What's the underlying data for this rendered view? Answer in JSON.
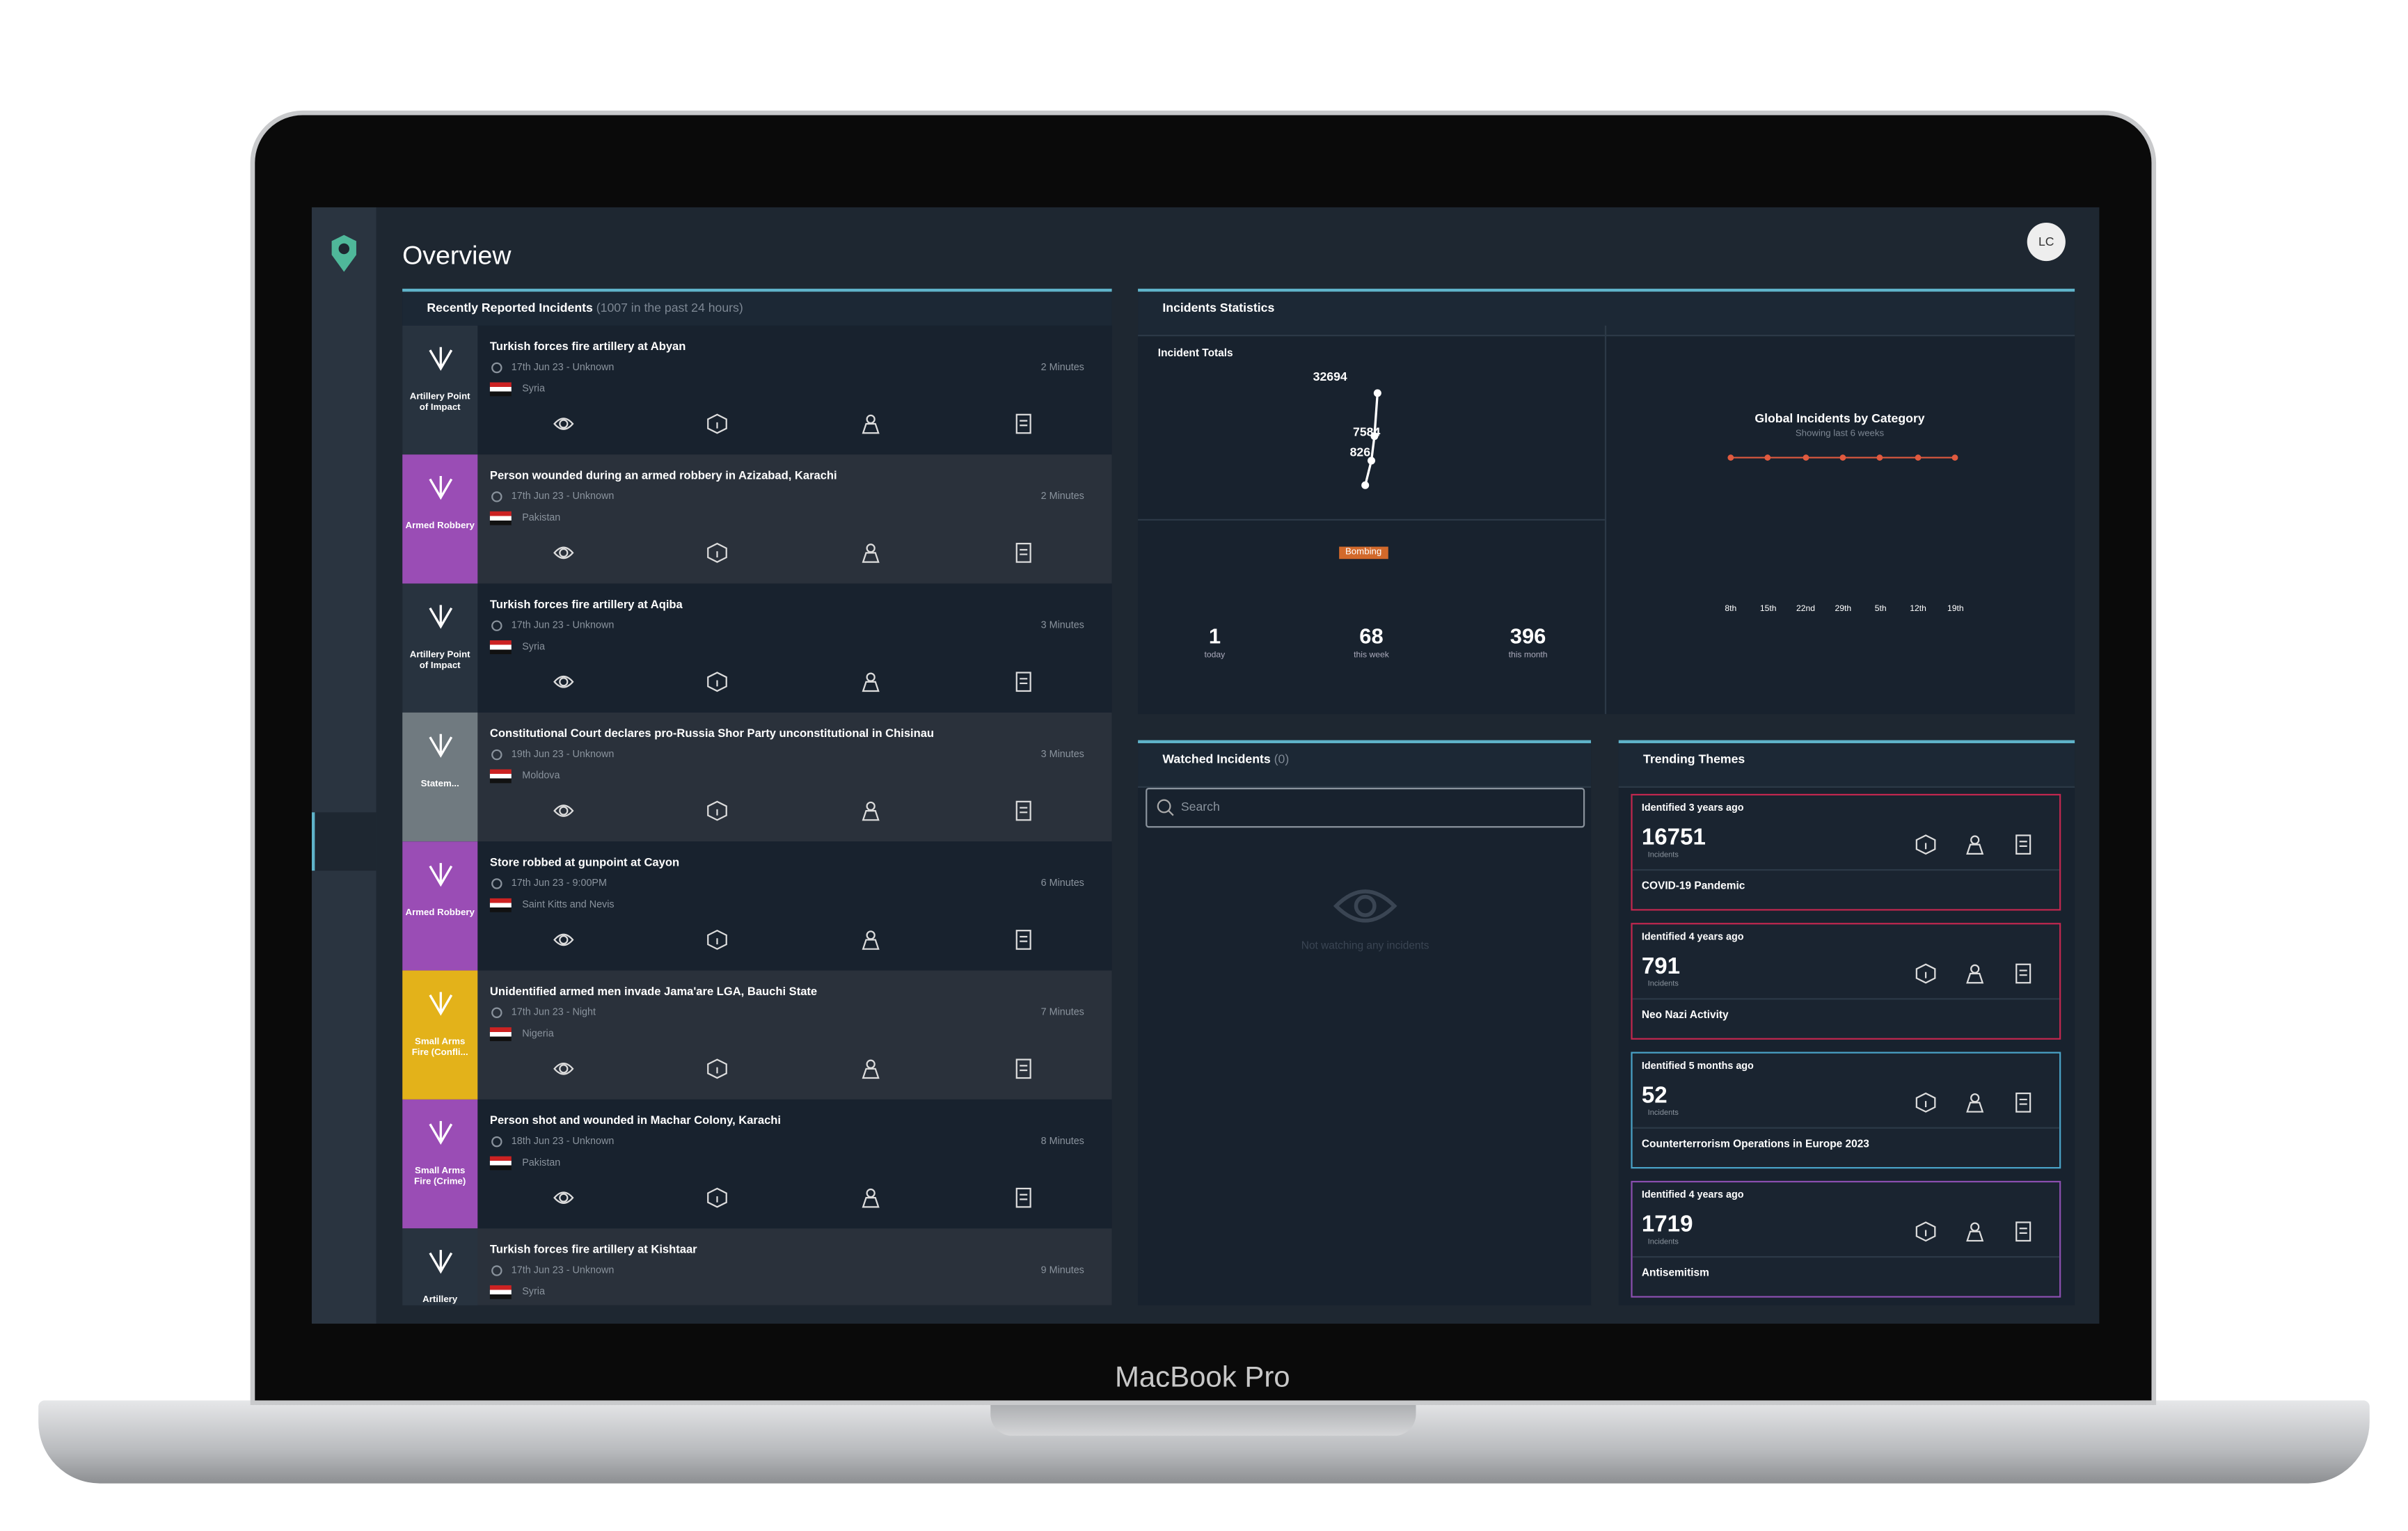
{
  "header": {
    "title": "Overview",
    "avatar": "LC"
  },
  "incidents": {
    "title": "Recently Reported Incidents",
    "subtitle": "(1007 in the past 24 hours)",
    "items": [
      {
        "category": "Artillery Point of Impact",
        "title": "Turkish forces fire artillery at Abyan",
        "date": "17th Jun 23 - Unknown",
        "country": "Syria",
        "age": "2 Minutes"
      },
      {
        "category": "Armed Robbery",
        "title": "Person wounded during an armed robbery in Azizabad, Karachi",
        "date": "17th Jun 23 - Unknown",
        "country": "Pakistan",
        "age": "2 Minutes"
      },
      {
        "category": "Artillery Point of Impact",
        "title": "Turkish forces fire artillery at Aqiba",
        "date": "17th Jun 23 - Unknown",
        "country": "Syria",
        "age": "3 Minutes"
      },
      {
        "category": "Statem...",
        "title": "Constitutional Court declares pro-Russia Shor Party unconstitutional in Chisinau",
        "date": "19th Jun 23 - Unknown",
        "country": "Moldova",
        "age": "3 Minutes"
      },
      {
        "category": "Armed Robbery",
        "title": "Store robbed at gunpoint at Cayon",
        "date": "17th Jun 23 - 9:00PM",
        "country": "Saint Kitts and Nevis",
        "age": "6 Minutes"
      },
      {
        "category": "Small Arms Fire (Confli...",
        "title": "Unidentified armed men invade Jama'are LGA, Bauchi State",
        "date": "17th Jun 23 - Night",
        "country": "Nigeria",
        "age": "7 Minutes"
      },
      {
        "category": "Small Arms Fire (Crime)",
        "title": "Person shot and wounded in Machar Colony, Karachi",
        "date": "18th Jun 23 - Unknown",
        "country": "Pakistan",
        "age": "8 Minutes"
      },
      {
        "category": "Artillery",
        "title": "Turkish forces fire artillery at Kishtaar",
        "date": "17th Jun 23 - Unknown",
        "country": "Syria",
        "age": "9 Minutes"
      }
    ]
  },
  "statistics": {
    "title": "Incidents Statistics",
    "totals_title": "Incident Totals",
    "chart_labels": [
      "32694",
      "7584",
      "826"
    ],
    "badge": "Bombing",
    "totals": [
      {
        "value": "1",
        "label": "today"
      },
      {
        "value": "68",
        "label": "this week"
      },
      {
        "value": "396",
        "label": "this month"
      }
    ],
    "category_title": "Global Incidents by Category",
    "category_subtitle": "Showing last 6 weeks",
    "category_x": [
      "8th",
      "15th",
      "22nd",
      "29th",
      "5th",
      "12th",
      "19th"
    ]
  },
  "watched": {
    "title": "Watched Incidents",
    "count": "(0)",
    "search": "Search",
    "empty": "Not watching any incidents"
  },
  "trending": {
    "title": "Trending Themes",
    "cards": [
      {
        "identified": "Identified 3 years ago",
        "count": "16751",
        "unit": "Incidents",
        "name": "COVID-19 Pandemic"
      },
      {
        "identified": "Identified 4 years ago",
        "count": "791",
        "unit": "Incidents",
        "name": "Neo Nazi Activity"
      },
      {
        "identified": "Identified 5 months ago",
        "count": "52",
        "unit": "Incidents",
        "name": "Counterterrorism Operations in Europe 2023"
      },
      {
        "identified": "Identified 4 years ago",
        "count": "1719",
        "unit": "Incidents",
        "name": "Antisemitism"
      }
    ]
  },
  "device": {
    "label": "MacBook Pro"
  }
}
